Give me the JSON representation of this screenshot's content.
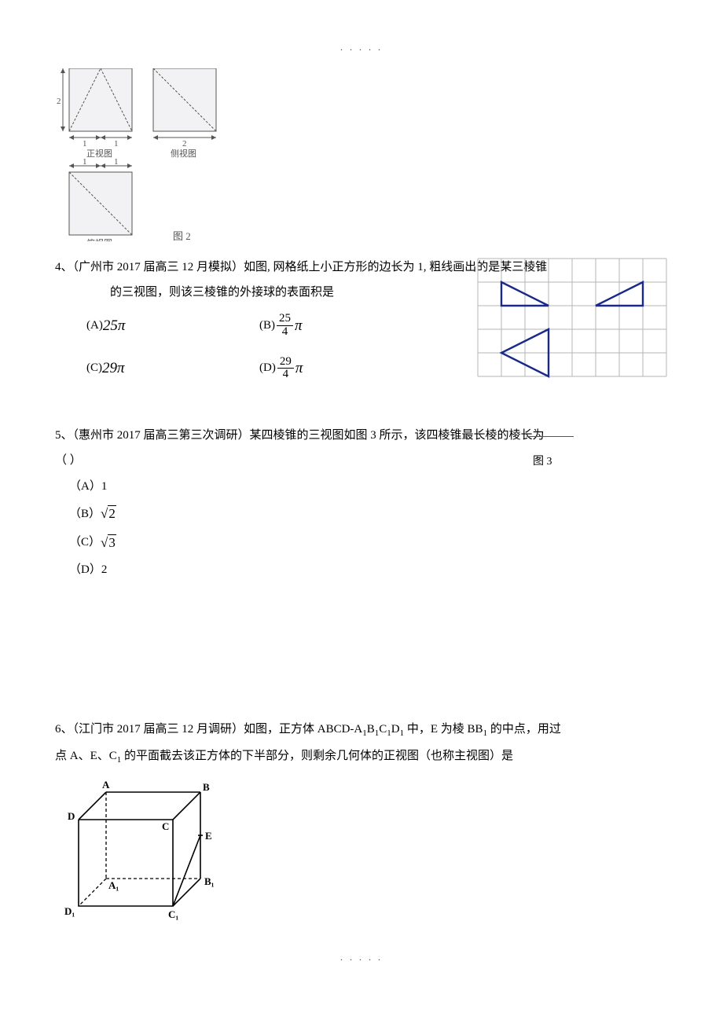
{
  "page_dots_top": ". . . . .",
  "page_dots_bottom": ". . . . .",
  "fig2": {
    "front_label": "正视图",
    "side_label": "侧视图",
    "top_label": "俯视图",
    "caption": "图 2",
    "dim_2": "2",
    "dim_1": "1"
  },
  "q4": {
    "header": "4、（广州市 2017 届高三 12 月模拟）如图,  网格纸上小正方形的边长为 1,  粗线画出的是某三棱锥",
    "header2": "的三视图，则该三棱锥的外接球的表面积是",
    "optA_label": "(A) ",
    "optA_val": "25π",
    "optB_label": "(B) ",
    "optB_num": "25",
    "optB_den": "4",
    "optB_pi": "π",
    "optC_label": "(C) ",
    "optC_val": "29π",
    "optD_label": "(D) ",
    "optD_num": "29",
    "optD_den": "4",
    "optD_pi": "π",
    "grid": {
      "cell": 30,
      "cols": 8,
      "rows": 5,
      "grid_color": "#b5b5b5",
      "stroke_color": "#1a2a8a",
      "stroke_width": 2.4,
      "tri1": [
        [
          1,
          1
        ],
        [
          1,
          2
        ],
        [
          3,
          2
        ]
      ],
      "tri2": [
        [
          7,
          1
        ],
        [
          5,
          2
        ],
        [
          7,
          2
        ]
      ],
      "tri3": [
        [
          3,
          3
        ],
        [
          1,
          4
        ],
        [
          3,
          5
        ]
      ]
    }
  },
  "q5": {
    "header": "5、（惠州市 2017 届高三第三次调研）某四棱锥的三视图如图 3 所示，该四棱锥最长棱的棱长为",
    "paren": "（      ）",
    "fig_label": "图 3",
    "optA": "（A）1",
    "optB_label": "（B）",
    "optB_val": "√2",
    "optC_label": "（C）",
    "optC_val": "√3",
    "optD": "（D）2"
  },
  "q6": {
    "header_a": "6、（江门市 2017 届高三 12 月调研）如图，正方体 ABCD-A",
    "header_b": "B",
    "header_c": "C",
    "header_d": "D",
    "header_e": " 中，E 为棱 BB",
    "header_f": " 的中点，用过",
    "line2_a": "点 A、E、C",
    "line2_b": " 的平面截去该正方体的下半部分，则剩余几何体的正视图（也称主视图）是",
    "sub1": "1",
    "cube": {
      "A": "A",
      "B": "B",
      "C": "C",
      "D": "D",
      "E": "E",
      "A1": "A₁",
      "B1": "B₁",
      "C1": "C₁",
      "D1": "D₁"
    }
  }
}
